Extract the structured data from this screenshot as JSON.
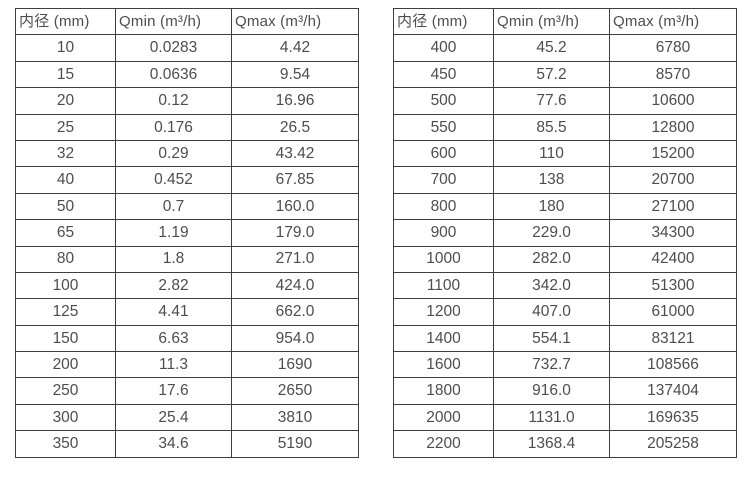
{
  "colors": {
    "background": "#ffffff",
    "border": "#3f3f3f",
    "text": "#4d4d4d"
  },
  "tables": [
    {
      "name": "flow-spec-small-diameters",
      "headers": [
        "内径 (mm)",
        "Qmin (m³/h)",
        "Qmax (m³/h)"
      ],
      "rows": [
        [
          "10",
          "0.0283",
          "4.42"
        ],
        [
          "15",
          "0.0636",
          "9.54"
        ],
        [
          "20",
          "0.12",
          "16.96"
        ],
        [
          "25",
          "0.176",
          "26.5"
        ],
        [
          "32",
          "0.29",
          "43.42"
        ],
        [
          "40",
          "0.452",
          "67.85"
        ],
        [
          "50",
          "0.7",
          "160.0"
        ],
        [
          "65",
          "1.19",
          "179.0"
        ],
        [
          "80",
          "1.8",
          "271.0"
        ],
        [
          "100",
          "2.82",
          "424.0"
        ],
        [
          "125",
          "4.41",
          "662.0"
        ],
        [
          "150",
          "6.63",
          "954.0"
        ],
        [
          "200",
          "11.3",
          "1690"
        ],
        [
          "250",
          "17.6",
          "2650"
        ],
        [
          "300",
          "25.4",
          "3810"
        ],
        [
          "350",
          "34.6",
          "5190"
        ]
      ]
    },
    {
      "name": "flow-spec-large-diameters",
      "headers": [
        "内径 (mm)",
        "Qmin (m³/h)",
        "Qmax (m³/h)"
      ],
      "rows": [
        [
          "400",
          "45.2",
          "6780"
        ],
        [
          "450",
          "57.2",
          "8570"
        ],
        [
          "500",
          "77.6",
          "10600"
        ],
        [
          "550",
          "85.5",
          "12800"
        ],
        [
          "600",
          "110",
          "15200"
        ],
        [
          "700",
          "138",
          "20700"
        ],
        [
          "800",
          "180",
          "27100"
        ],
        [
          "900",
          "229.0",
          "34300"
        ],
        [
          "1000",
          "282.0",
          "42400"
        ],
        [
          "1100",
          "342.0",
          "51300"
        ],
        [
          "1200",
          "407.0",
          "61000"
        ],
        [
          "1400",
          "554.1",
          "83121"
        ],
        [
          "1600",
          "732.7",
          "108566"
        ],
        [
          "1800",
          "916.0",
          "137404"
        ],
        [
          "2000",
          "1131.0",
          "169635"
        ],
        [
          "2200",
          "1368.4",
          "205258"
        ]
      ]
    }
  ]
}
